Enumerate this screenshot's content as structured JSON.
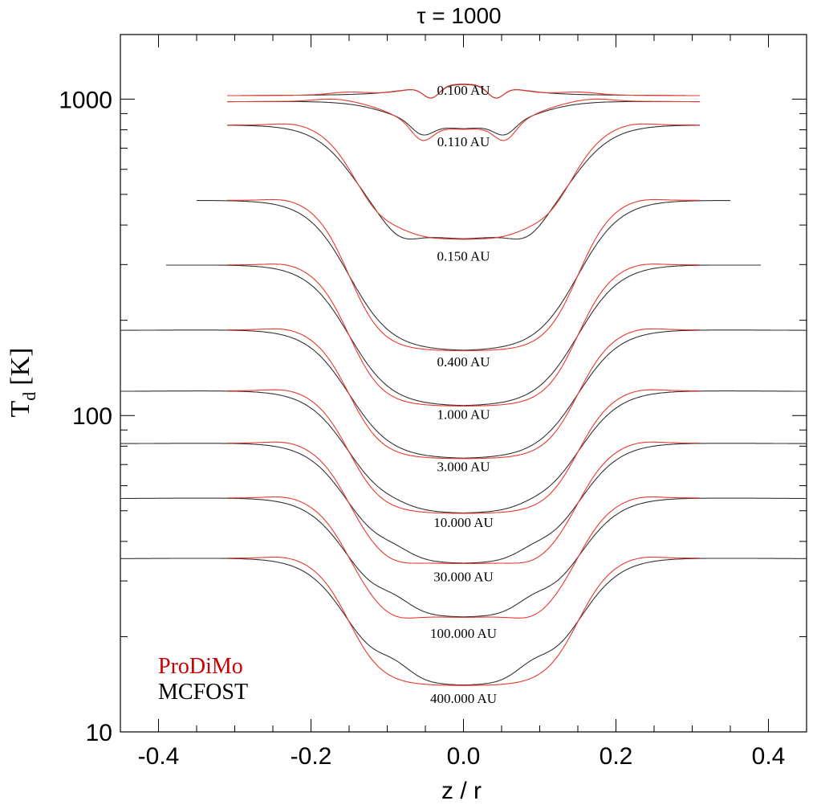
{
  "chart_data": {
    "type": "line",
    "title": "τ = 1000",
    "xlabel": "z / r",
    "ylabel_main": "T",
    "ylabel_sub": "d",
    "ylabel_unit": "[K]",
    "xlim": [
      -0.45,
      0.45
    ],
    "ylim": [
      10,
      1600
    ],
    "yscale": "log",
    "grid": false,
    "x_ticks": [
      -0.4,
      -0.2,
      0.0,
      0.2,
      0.4
    ],
    "x_tick_labels": [
      "-0.4",
      "-0.2",
      "0.0",
      "0.2",
      "0.4"
    ],
    "y_ticks": [
      10,
      100,
      1000
    ],
    "y_tick_labels": [
      "10",
      "100",
      "1000"
    ],
    "legend": {
      "placement": "bottom-left",
      "entries": [
        {
          "name": "ProDiMo",
          "color": "#cc0000"
        },
        {
          "name": "MCFOST",
          "color": "#000000"
        }
      ]
    },
    "colors": {
      "prodimo": "#e8392f",
      "mcfost": "#333333"
    },
    "curves": [
      {
        "label": "0.100 AU",
        "label_T": 1070,
        "mid_T": 1120,
        "pr_out": 1030,
        "mc_out": 1030,
        "pr_dip": 1000,
        "mc_dip": 1000,
        "w": 0.07,
        "pr_xext": 0.31,
        "mc_xext": 0.31
      },
      {
        "label": "0.110 AU",
        "label_T": 735,
        "mid_T": 800,
        "pr_out": 985,
        "mc_out": 985,
        "pr_dip": 700,
        "mc_dip": 720,
        "w": 0.09,
        "pr_xext": 0.31,
        "mc_xext": 0.31
      },
      {
        "label": "0.150 AU",
        "label_T": 320,
        "mid_T": 360,
        "pr_out": 830,
        "mc_out": 830,
        "pr_dip": 370,
        "mc_dip": 330,
        "w": 0.14,
        "pr_xext": 0.31,
        "mc_xext": 0.31
      },
      {
        "label": "0.400 AU",
        "label_T": 148,
        "mid_T": 160,
        "pr_out": 480,
        "mc_out": 480,
        "pr_dip": 160,
        "mc_dip": 160,
        "w": 0.15,
        "pr_xext": 0.31,
        "mc_xext": 0.35
      },
      {
        "label": "1.000 AU",
        "label_T": 101,
        "mid_T": 107,
        "pr_out": 300,
        "mc_out": 300,
        "pr_dip": 107,
        "mc_dip": 107,
        "w": 0.15,
        "pr_xext": 0.31,
        "mc_xext": 0.39
      },
      {
        "label": "3.000 AU",
        "label_T": 69,
        "mid_T": 73,
        "pr_out": 187,
        "mc_out": 187,
        "pr_dip": 73,
        "mc_dip": 73,
        "w": 0.15,
        "pr_xext": 0.31,
        "mc_xext": 0.45
      },
      {
        "label": "10.000 AU",
        "label_T": 46,
        "mid_T": 49,
        "pr_out": 120,
        "mc_out": 120,
        "pr_dip": 49,
        "mc_dip": 50,
        "w": 0.15,
        "pr_xext": 0.31,
        "mc_xext": 0.45
      },
      {
        "label": "30.000 AU",
        "label_T": 31,
        "mid_T": 34,
        "pr_out": 82,
        "mc_out": 82,
        "pr_dip": 33,
        "mc_dip": 36,
        "w": 0.15,
        "pr_xext": 0.31,
        "mc_xext": 0.45
      },
      {
        "label": "100.000 AU",
        "label_T": 20.5,
        "mid_T": 23,
        "pr_out": 55,
        "mc_out": 55,
        "pr_dip": 22,
        "mc_dip": 25,
        "w": 0.15,
        "pr_xext": 0.31,
        "mc_xext": 0.45
      },
      {
        "label": "400.000 AU",
        "label_T": 12.8,
        "mid_T": 14,
        "pr_out": 35.5,
        "mc_out": 35.5,
        "pr_dip": 14,
        "mc_dip": 15.5,
        "w": 0.15,
        "pr_xext": 0.31,
        "mc_xext": 0.45
      }
    ]
  }
}
